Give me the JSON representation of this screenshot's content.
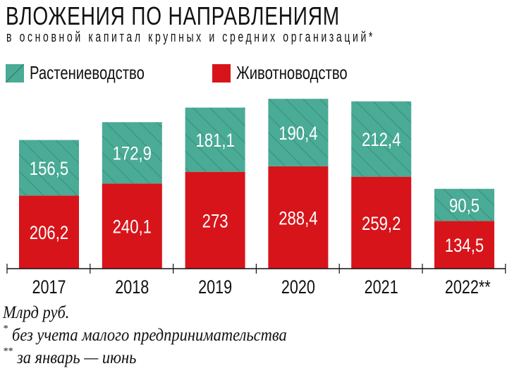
{
  "title": "ВЛОЖЕНИЯ ПО НАПРАВЛЕНИЯМ",
  "subtitle": "в основной капитал крупных и средних организаций*",
  "colors": {
    "crop": "#4aab96",
    "crop_hatch": "#2f7f6c",
    "livestock": "#d7141a"
  },
  "chart_data": {
    "type": "bar",
    "stacked": true,
    "categories": [
      "2017",
      "2018",
      "2019",
      "2020",
      "2021",
      "2022**"
    ],
    "series": [
      {
        "name": "Животноводство",
        "values": [
          206.2,
          240.1,
          273,
          288.4,
          259.2,
          134.5
        ],
        "labels": [
          "206,2",
          "240,1",
          "273",
          "288,4",
          "259,2",
          "134,5"
        ]
      },
      {
        "name": "Растениеводство",
        "values": [
          156.5,
          172.9,
          181.1,
          190.4,
          212.4,
          90.5
        ],
        "labels": [
          "156,5",
          "172,9",
          "181,1",
          "190,4",
          "212,4",
          "90,5"
        ]
      }
    ],
    "legend": "top-left",
    "grid": false
  },
  "notes": {
    "unit": "Млрд руб.",
    "note1_mark": "*",
    "note1": "без учета малого предпринимательства",
    "note2_mark": "**",
    "note2": "за январь — июнь"
  }
}
